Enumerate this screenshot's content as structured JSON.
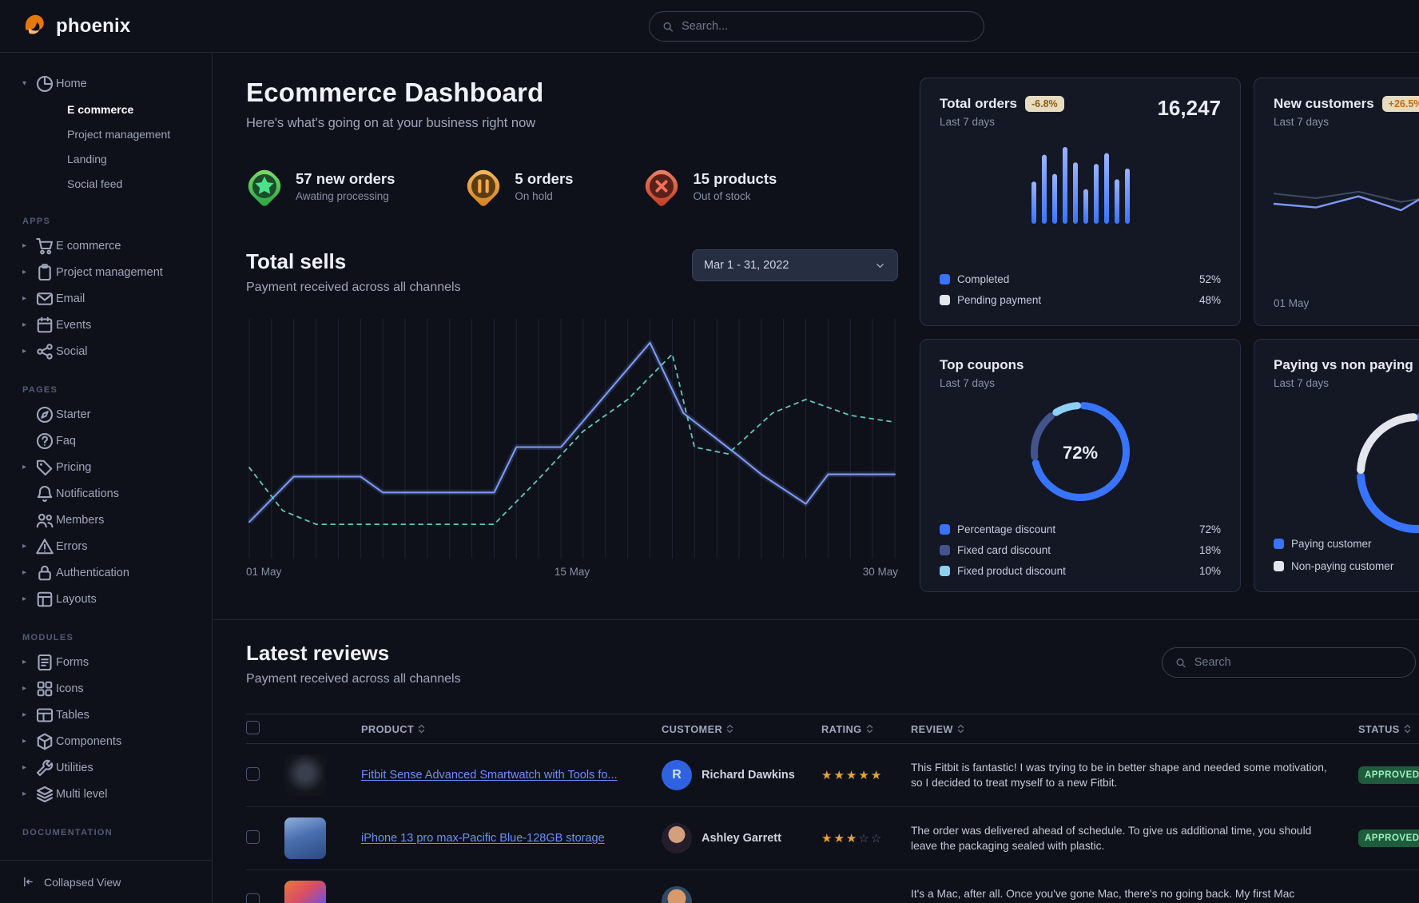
{
  "brand": {
    "name": "phoenix"
  },
  "navbar": {
    "search_placeholder": "Search..."
  },
  "sidebar": {
    "home_group": {
      "label": "Home",
      "icon": "pie",
      "children": [
        {
          "label": "E commerce",
          "active": true
        },
        {
          "label": "Project management",
          "active": false
        },
        {
          "label": "Landing",
          "active": false
        },
        {
          "label": "Social feed",
          "active": false
        }
      ]
    },
    "sections": [
      {
        "label": "APPS",
        "items": [
          {
            "label": "E commerce",
            "icon": "cart",
            "caret": true
          },
          {
            "label": "Project management",
            "icon": "clipboard",
            "caret": true
          },
          {
            "label": "Email",
            "icon": "envelope",
            "caret": true
          },
          {
            "label": "Events",
            "icon": "calendar",
            "caret": true
          },
          {
            "label": "Social",
            "icon": "share",
            "caret": true
          }
        ]
      },
      {
        "label": "PAGES",
        "items": [
          {
            "label": "Starter",
            "icon": "compass",
            "caret": false
          },
          {
            "label": "Faq",
            "icon": "question",
            "caret": false
          },
          {
            "label": "Pricing",
            "icon": "tag",
            "caret": true
          },
          {
            "label": "Notifications",
            "icon": "bell",
            "caret": false
          },
          {
            "label": "Members",
            "icon": "users",
            "caret": false
          },
          {
            "label": "Errors",
            "icon": "warning",
            "caret": true
          },
          {
            "label": "Authentication",
            "icon": "lock",
            "caret": true
          },
          {
            "label": "Layouts",
            "icon": "layout",
            "caret": true
          }
        ]
      },
      {
        "label": "MODULES",
        "items": [
          {
            "label": "Forms",
            "icon": "form",
            "caret": true
          },
          {
            "label": "Icons",
            "icon": "grid",
            "caret": true
          },
          {
            "label": "Tables",
            "icon": "table",
            "caret": true
          },
          {
            "label": "Components",
            "icon": "box",
            "caret": true
          },
          {
            "label": "Utilities",
            "icon": "wrench",
            "caret": true
          },
          {
            "label": "Multi level",
            "icon": "layers",
            "caret": true
          }
        ]
      },
      {
        "label": "DOCUMENTATION",
        "items": []
      }
    ],
    "footer": {
      "label": "Collapsed View",
      "icon": "collapse"
    }
  },
  "header": {
    "title": "Ecommerce Dashboard",
    "subtitle": "Here's what's going on at your business right now"
  },
  "stats": [
    {
      "title": "57 new orders",
      "subtitle": "Awating processing",
      "icon": "star",
      "theme": "success"
    },
    {
      "title": "5 orders",
      "subtitle": "On hold",
      "icon": "pause",
      "theme": "warning"
    },
    {
      "title": "15 products",
      "subtitle": "Out of stock",
      "icon": "x",
      "theme": "danger"
    }
  ],
  "total_sells": {
    "title": "Total sells",
    "subtitle": "Payment received across all channels",
    "date_range": "Mar 1 - 31, 2022"
  },
  "cards": {
    "total_orders": {
      "title": "Total orders",
      "badge": "-6.8%",
      "period": "Last 7 days",
      "value": "16,247",
      "legend": [
        {
          "label": "Completed",
          "value": "52%",
          "color": "#3874ff"
        },
        {
          "label": "Pending payment",
          "value": "48%",
          "color": "#e3e6ed"
        }
      ]
    },
    "new_customers": {
      "title": "New customers",
      "badge": "+26.5%",
      "period": "Last 7 days",
      "x_label": "01 May"
    },
    "top_coupons": {
      "title": "Top coupons",
      "period": "Last 7 days",
      "center_label": "72%",
      "legend": [
        {
          "label": "Percentage discount",
          "value": "72%",
          "color": "#3874ff"
        },
        {
          "label": "Fixed card discount",
          "value": "18%",
          "color": "#43548c"
        },
        {
          "label": "Fixed product discount",
          "value": "10%",
          "color": "#8ed0f3"
        }
      ]
    },
    "paying": {
      "title": "Paying vs non paying",
      "period": "Last 7 days",
      "legend": [
        {
          "label": "Paying customer",
          "color": "#3874ff"
        },
        {
          "label": "Non-paying customer",
          "color": "#e3e6ed"
        }
      ]
    }
  },
  "reviews": {
    "title": "Latest reviews",
    "subtitle": "Payment received across all channels",
    "search_placeholder": "Search",
    "columns": [
      "PRODUCT",
      "CUSTOMER",
      "RATING",
      "REVIEW",
      "STATUS"
    ],
    "rows": [
      {
        "product": "Fitbit Sense Advanced Smartwatch with Tools fo...",
        "thumb": "fitbit",
        "customer": "Richard Dawkins",
        "avatar": {
          "type": "initial",
          "text": "R"
        },
        "rating": 5,
        "review": "This Fitbit is fantastic! I was trying to be in better shape and needed some motivation, so I decided to treat myself to a new Fitbit.",
        "status": "APPROVED"
      },
      {
        "product": "iPhone 13 pro max-Pacific Blue-128GB storage",
        "thumb": "iphone",
        "customer": "Ashley Garrett",
        "avatar": {
          "type": "photo",
          "key": "ashley"
        },
        "rating": 3,
        "review": "The order was delivered ahead of schedule. To give us additional time, you should leave the packaging sealed with plastic.",
        "status": "APPROVED"
      },
      {
        "product": "",
        "thumb": "macbook",
        "customer": "",
        "avatar": {
          "type": "photo",
          "key": "row3"
        },
        "rating": null,
        "review": "It's a Mac, after all. Once you've gone Mac, there's no going back. My first Mac lasted...",
        "status": ""
      }
    ]
  },
  "chart_data": [
    {
      "id": "total_sells",
      "type": "line",
      "title": "Total sells",
      "x_ticks": [
        "01 May",
        "15 May",
        "30 May"
      ],
      "x_range": [
        1,
        30
      ],
      "ylim": [
        0,
        100
      ],
      "grid": "vertical",
      "grid_count": 30,
      "series": [
        {
          "name": "current",
          "style": "solid",
          "color": "#7d99f7",
          "x": [
            1,
            3,
            6,
            7,
            12,
            13,
            15,
            19,
            20.5,
            23,
            24,
            26,
            27,
            30
          ],
          "values": [
            14,
            34,
            34,
            27,
            27,
            47,
            47,
            93,
            62,
            43,
            35,
            22,
            35,
            35
          ]
        },
        {
          "name": "previous",
          "style": "dashed",
          "color": "#5fc8bb",
          "x": [
            1,
            2.5,
            4,
            12,
            14,
            16,
            18,
            20,
            21,
            22.5,
            24.5,
            26,
            28,
            30
          ],
          "values": [
            38,
            19,
            13,
            13,
            33,
            54,
            68,
            88,
            47,
            44,
            62,
            68,
            61,
            58
          ]
        }
      ]
    },
    {
      "id": "total_orders_bars",
      "type": "bar",
      "ylim": [
        0,
        100
      ],
      "color_from": "#9bb3ff",
      "color_to": "#3874ff",
      "values": [
        55,
        90,
        65,
        100,
        80,
        45,
        78,
        92,
        58,
        72
      ]
    },
    {
      "id": "new_customers_line",
      "type": "line",
      "x_ticks": [
        "01 May"
      ],
      "ylim": [
        0,
        100
      ],
      "series": [
        {
          "name": "previous",
          "style": "solid",
          "color": "#3e4a63",
          "values": [
            55,
            50,
            57,
            46,
            53,
            49,
            56,
            50
          ]
        },
        {
          "name": "current",
          "style": "solid",
          "color": "#7d99f7",
          "values": [
            44,
            40,
            52,
            37,
            64,
            46,
            40,
            34
          ]
        }
      ]
    },
    {
      "id": "top_coupons_donut",
      "type": "donut",
      "center_label": "72%",
      "slices": [
        {
          "label": "Percentage discount",
          "value": 72,
          "color": "#3874ff"
        },
        {
          "label": "Fixed card discount",
          "value": 18,
          "color": "#43548c"
        },
        {
          "label": "Fixed product discount",
          "value": 10,
          "color": "#8ed0f3"
        }
      ]
    },
    {
      "id": "paying_donut",
      "type": "donut",
      "slices": [
        {
          "label": "Paying customer",
          "value": 75,
          "color": "#3874ff"
        },
        {
          "label": "Non-paying customer",
          "value": 25,
          "color": "#e3e6ed"
        }
      ]
    }
  ]
}
